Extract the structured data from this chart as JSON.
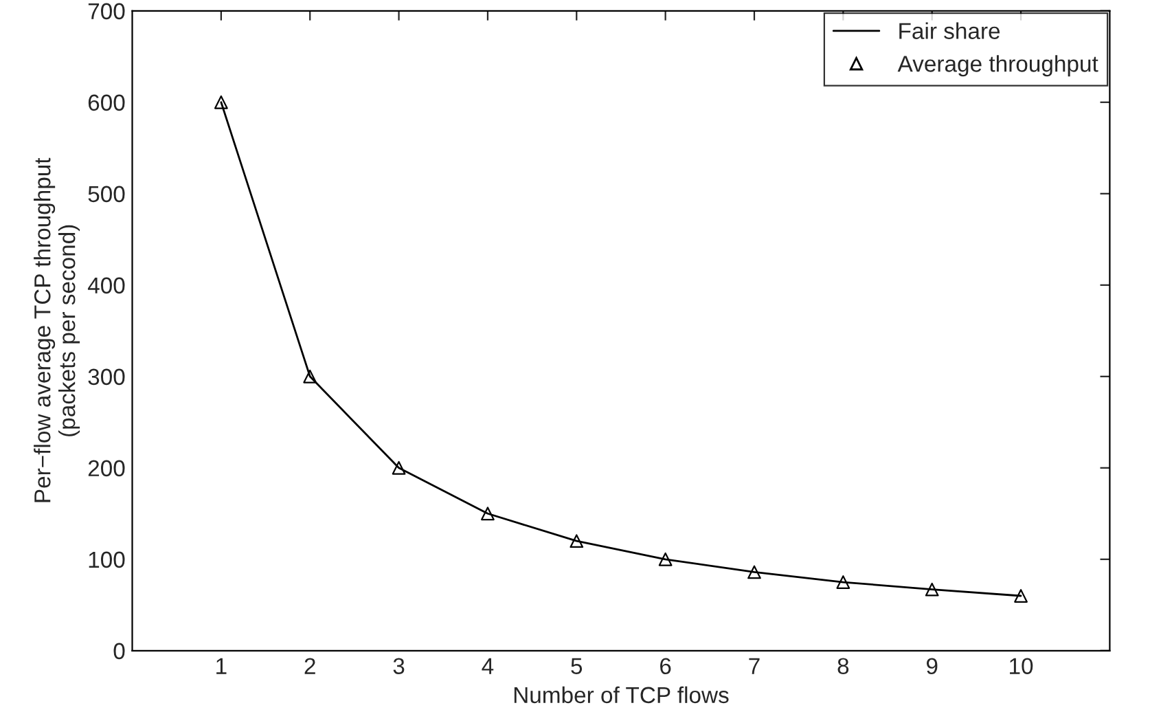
{
  "chart_data": {
    "type": "line",
    "xlabel": "Number of TCP flows",
    "ylabel": "Per−flow average TCP throughput\n(packets per second)",
    "x": [
      1,
      2,
      3,
      4,
      5,
      6,
      7,
      8,
      9,
      10
    ],
    "series": [
      {
        "name": "Fair share",
        "color": "#000000",
        "marker": "none",
        "line_style": "solid",
        "values": [
          600,
          300,
          200,
          150,
          120,
          100,
          86,
          75,
          67,
          60
        ]
      },
      {
        "name": "Average throughput",
        "type": "scatter",
        "color": "#000000",
        "marker": "triangle",
        "values": [
          600,
          300,
          200,
          150,
          120,
          100,
          86,
          75,
          67,
          60
        ]
      }
    ],
    "xlim": [
      0,
      11
    ],
    "xticks": [
      1,
      2,
      3,
      4,
      5,
      6,
      7,
      8,
      9,
      10
    ],
    "ylim": [
      0,
      700
    ],
    "yticks": [
      0,
      100,
      200,
      300,
      400,
      500,
      600,
      700
    ],
    "grid": false,
    "legend": "top right"
  }
}
